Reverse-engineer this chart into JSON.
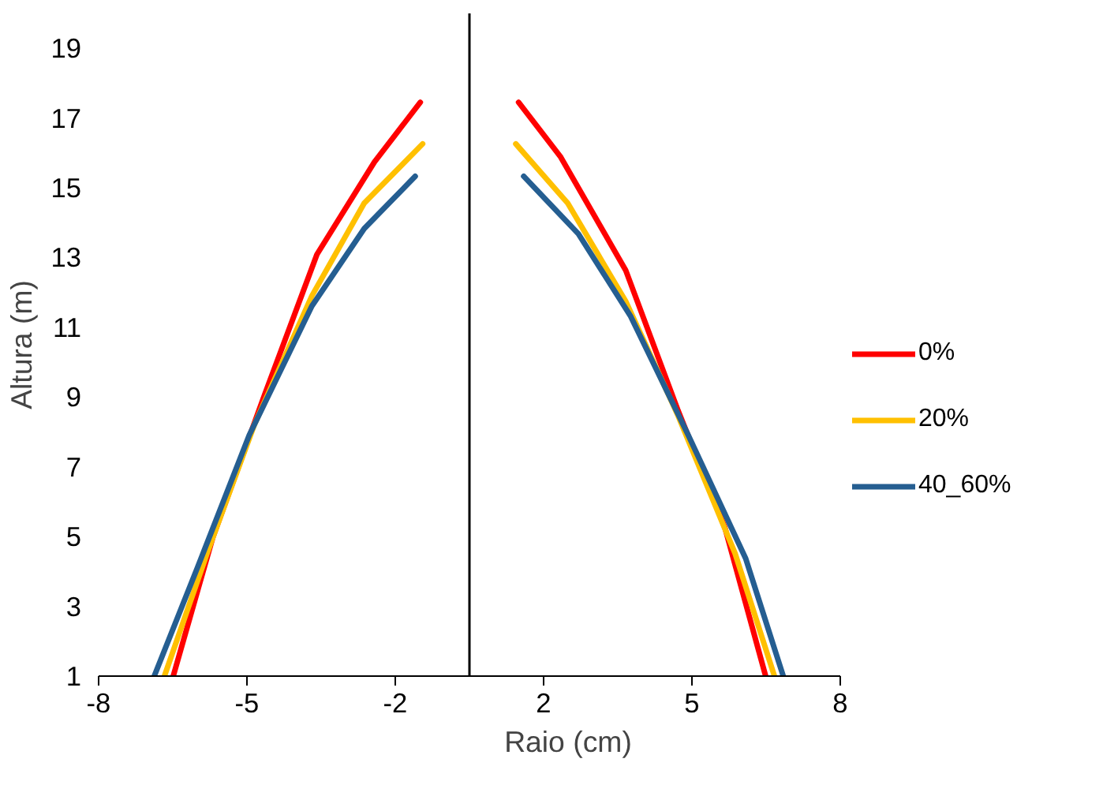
{
  "chart_data": {
    "type": "line",
    "xlabel": "Raio (cm)",
    "ylabel": "Altura (m)",
    "xlim": [
      -8,
      8
    ],
    "xticks": [
      -8,
      {
        "value": -4.8,
        "label": "-5"
      },
      {
        "value": -1.6,
        "label": "-2"
      },
      {
        "value": 1.6,
        "label": "2"
      },
      {
        "value": 4.8,
        "label": "5"
      },
      8
    ],
    "ylim": [
      1,
      20
    ],
    "yticks": [
      1,
      3,
      5,
      7,
      9,
      11,
      13,
      15,
      17,
      19
    ],
    "grid": false,
    "legend": "right",
    "marker": "none",
    "line_style": "solid",
    "series": [
      {
        "name": "0%",
        "color": "#ff0000",
        "x": [
          -6.39,
          -5.54,
          -4.41,
          -3.29,
          -2.05,
          -1.06,
          null,
          1.06,
          1.96,
          3.37,
          4.49,
          5.51,
          6.39
        ],
        "values": [
          1,
          4.96,
          9.1,
          13.09,
          15.74,
          17.45,
          null,
          17.45,
          15.9,
          12.64,
          8.65,
          5.26,
          1
        ]
      },
      {
        "name": "20%",
        "color": "#ffc000",
        "x": [
          -6.58,
          -5.66,
          -4.64,
          -3.4,
          -2.27,
          -1.01,
          null,
          1.0,
          2.12,
          3.37,
          4.49,
          5.73,
          6.58
        ],
        "values": [
          1,
          4.52,
          8.21,
          11.9,
          14.56,
          16.26,
          null,
          16.26,
          14.56,
          11.75,
          8.5,
          4.52,
          1
        ]
      },
      {
        "name": "40_60%",
        "color": "#255e91",
        "x": [
          -6.8,
          -5.88,
          -4.75,
          -3.4,
          -2.27,
          -1.17,
          null,
          1.17,
          2.35,
          3.48,
          4.72,
          5.96,
          6.77
        ],
        "values": [
          1,
          4.07,
          7.91,
          11.61,
          13.83,
          15.33,
          null,
          15.33,
          13.68,
          11.31,
          7.91,
          4.37,
          1
        ]
      }
    ]
  }
}
